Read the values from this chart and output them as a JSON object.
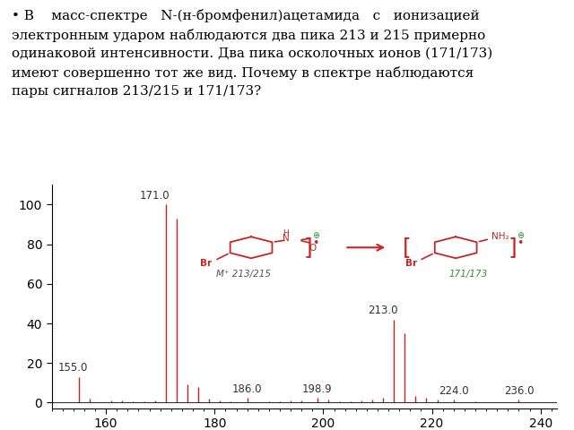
{
  "text_lines": [
    "• В    масс-спектре   N-(н-бромфенил)ацетамида   с   ионизацией",
    "электронным ударом наблюдаются два пика 213 и 215 примерно",
    "одинаковой интенсивности. Два пика осколочных ионов (171/173)",
    "имеют совершенно тот же вид. Почему в спектре наблюдаются",
    "пары сигналов 213/215 и 171/173?"
  ],
  "xlim": [
    150,
    243
  ],
  "ylim": [
    -3,
    110
  ],
  "yticks": [
    0,
    20,
    40,
    60,
    80,
    100
  ],
  "xticks": [
    160,
    180,
    200,
    220,
    240
  ],
  "peaks": [
    {
      "mz": 155.0,
      "intensity": 13,
      "label": "155.0"
    },
    {
      "mz": 157.0,
      "intensity": 2,
      "label": null
    },
    {
      "mz": 161.0,
      "intensity": 1.0,
      "label": null
    },
    {
      "mz": 163.0,
      "intensity": 1.0,
      "label": null
    },
    {
      "mz": 165.0,
      "intensity": 0.8,
      "label": null
    },
    {
      "mz": 167.0,
      "intensity": 0.8,
      "label": null
    },
    {
      "mz": 169.0,
      "intensity": 1.2,
      "label": null
    },
    {
      "mz": 171.0,
      "intensity": 100,
      "label": "171.0"
    },
    {
      "mz": 173.0,
      "intensity": 93,
      "label": null
    },
    {
      "mz": 175.0,
      "intensity": 9,
      "label": null
    },
    {
      "mz": 177.0,
      "intensity": 8,
      "label": null
    },
    {
      "mz": 179.0,
      "intensity": 2,
      "label": null
    },
    {
      "mz": 181.0,
      "intensity": 1.2,
      "label": null
    },
    {
      "mz": 183.0,
      "intensity": 0.8,
      "label": null
    },
    {
      "mz": 186.0,
      "intensity": 2.5,
      "label": "186.0"
    },
    {
      "mz": 190.0,
      "intensity": 0.8,
      "label": null
    },
    {
      "mz": 192.0,
      "intensity": 0.8,
      "label": null
    },
    {
      "mz": 194.0,
      "intensity": 1.2,
      "label": null
    },
    {
      "mz": 196.0,
      "intensity": 1.2,
      "label": null
    },
    {
      "mz": 198.9,
      "intensity": 2.5,
      "label": "198.9"
    },
    {
      "mz": 200.9,
      "intensity": 1.5,
      "label": null
    },
    {
      "mz": 203.0,
      "intensity": 0.8,
      "label": null
    },
    {
      "mz": 205.0,
      "intensity": 0.8,
      "label": null
    },
    {
      "mz": 207.0,
      "intensity": 1.0,
      "label": null
    },
    {
      "mz": 209.0,
      "intensity": 1.5,
      "label": null
    },
    {
      "mz": 211.0,
      "intensity": 2.5,
      "label": null
    },
    {
      "mz": 213.0,
      "intensity": 42,
      "label": "213.0"
    },
    {
      "mz": 215.0,
      "intensity": 35,
      "label": null
    },
    {
      "mz": 217.0,
      "intensity": 3.5,
      "label": null
    },
    {
      "mz": 219.0,
      "intensity": 2.5,
      "label": null
    },
    {
      "mz": 221.0,
      "intensity": 1.5,
      "label": null
    },
    {
      "mz": 224.0,
      "intensity": 1.5,
      "label": "224.0"
    },
    {
      "mz": 228.0,
      "intensity": 0.8,
      "label": null
    },
    {
      "mz": 236.0,
      "intensity": 1.5,
      "label": "236.0"
    }
  ],
  "peak_color": "#cc2222",
  "label_color": "#333333",
  "background_color": "#ffffff",
  "label_fontsize": 8.5,
  "axis_fontsize": 10,
  "mol_label_left": "M⁺ 213/215",
  "mol_label_right": "171/173",
  "mol_label_color_left": "#555555",
  "mol_label_color_right": "#3a8a3a",
  "struct_color": "#cc2222",
  "arrow_color": "#cc2222"
}
